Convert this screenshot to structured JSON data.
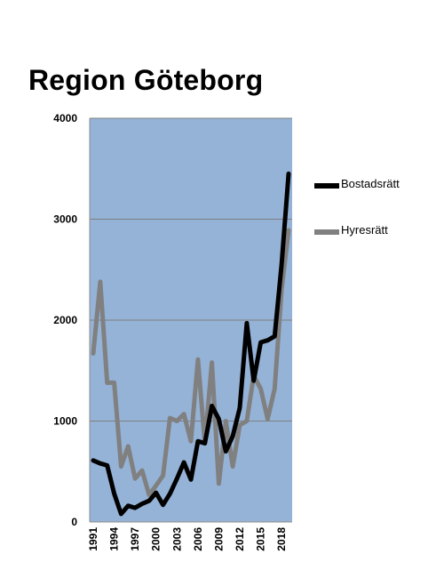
{
  "chart_data": {
    "type": "line",
    "title": "Region Göteborg",
    "xlabel": "",
    "ylabel": "",
    "ylim": [
      0,
      4000
    ],
    "yticks": [
      0,
      1000,
      2000,
      3000,
      4000
    ],
    "xticks": [
      "1991",
      "1994",
      "1997",
      "2000",
      "2003",
      "2006",
      "2009",
      "2012",
      "2015",
      "2018"
    ],
    "x": [
      1991,
      1992,
      1993,
      1994,
      1995,
      1996,
      1997,
      1998,
      1999,
      2000,
      2001,
      2002,
      2003,
      2004,
      2005,
      2006,
      2007,
      2008,
      2009,
      2010,
      2011,
      2012,
      2013,
      2014,
      2015,
      2016,
      2017,
      2018,
      2019
    ],
    "grid": true,
    "legend_position": "right",
    "plot_background": "#95b3d7",
    "series": [
      {
        "name": "Bostadsrätt",
        "color": "#000000",
        "values": [
          610,
          580,
          560,
          280,
          80,
          160,
          140,
          180,
          210,
          290,
          170,
          280,
          430,
          590,
          420,
          800,
          780,
          1150,
          1020,
          700,
          850,
          1130,
          1970,
          1400,
          1780,
          1800,
          1840,
          2550,
          3450
        ]
      },
      {
        "name": "Hyresrätt",
        "color": "#808080",
        "values": [
          1670,
          2380,
          1380,
          1380,
          550,
          750,
          430,
          510,
          270,
          360,
          460,
          1030,
          1000,
          1070,
          800,
          1610,
          780,
          1580,
          380,
          1000,
          550,
          960,
          1000,
          1450,
          1320,
          1020,
          1320,
          2300,
          2890
        ]
      }
    ]
  }
}
